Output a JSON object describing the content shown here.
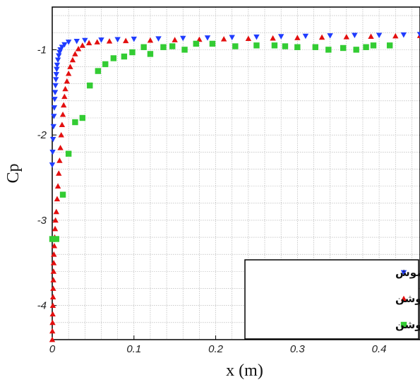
{
  "chart_data": {
    "type": "scatter",
    "xlabel": "x (m)",
    "ylabel": "Cp",
    "xlim": [
      0,
      0.45
    ],
    "ylim": [
      -4.4,
      -0.5
    ],
    "y_reversed": true,
    "grid": true,
    "legend_position": "bottom-right",
    "x_ticks": [
      {
        "value": 0,
        "label": "0"
      },
      {
        "value": 0.1,
        "label": "0.1"
      },
      {
        "value": 0.2,
        "label": "0.2"
      },
      {
        "value": 0.3,
        "label": "0.3"
      },
      {
        "value": 0.4,
        "label": "0.4"
      }
    ],
    "y_ticks": [
      {
        "value": -1,
        "label": "-1"
      },
      {
        "value": -2,
        "label": "-2"
      },
      {
        "value": -3,
        "label": "-3"
      },
      {
        "value": -4,
        "label": "-4"
      }
    ],
    "series": [
      {
        "name": "حل عددی- عملگر خاموش",
        "color": "#1f3cff",
        "marker": "triangle-down",
        "points": [
          [
            0.0,
            -2.35
          ],
          [
            0.0005,
            -2.2
          ],
          [
            0.001,
            -2.05
          ],
          [
            0.0015,
            -1.9
          ],
          [
            0.002,
            -1.78
          ],
          [
            0.0025,
            -1.68
          ],
          [
            0.003,
            -1.58
          ],
          [
            0.0035,
            -1.5
          ],
          [
            0.004,
            -1.42
          ],
          [
            0.0045,
            -1.35
          ],
          [
            0.005,
            -1.29
          ],
          [
            0.0055,
            -1.23
          ],
          [
            0.006,
            -1.18
          ],
          [
            0.007,
            -1.12
          ],
          [
            0.008,
            -1.07
          ],
          [
            0.009,
            -1.03
          ],
          [
            0.01,
            -1.0
          ],
          [
            0.012,
            -0.97
          ],
          [
            0.015,
            -0.94
          ],
          [
            0.02,
            -0.91
          ],
          [
            0.03,
            -0.9
          ],
          [
            0.04,
            -0.89
          ],
          [
            0.06,
            -0.885
          ],
          [
            0.08,
            -0.88
          ],
          [
            0.1,
            -0.875
          ],
          [
            0.13,
            -0.87
          ],
          [
            0.16,
            -0.865
          ],
          [
            0.19,
            -0.86
          ],
          [
            0.22,
            -0.855
          ],
          [
            0.25,
            -0.85
          ],
          [
            0.28,
            -0.845
          ],
          [
            0.31,
            -0.84
          ],
          [
            0.34,
            -0.835
          ],
          [
            0.37,
            -0.83
          ],
          [
            0.4,
            -0.83
          ],
          [
            0.43,
            -0.825
          ],
          [
            0.45,
            -0.82
          ]
        ]
      },
      {
        "name": "حل عددی- عملگر روشن",
        "color": "#e30f0f",
        "marker": "triangle-up",
        "points": [
          [
            0.0,
            -4.4
          ],
          [
            0.0002,
            -4.3
          ],
          [
            0.0004,
            -4.2
          ],
          [
            0.0006,
            -4.1
          ],
          [
            0.0008,
            -4.0
          ],
          [
            0.001,
            -3.9
          ],
          [
            0.0012,
            -3.8
          ],
          [
            0.0014,
            -3.7
          ],
          [
            0.0016,
            -3.6
          ],
          [
            0.0018,
            -3.5
          ],
          [
            0.002,
            -3.4
          ],
          [
            0.0025,
            -3.3
          ],
          [
            0.003,
            -3.2
          ],
          [
            0.0035,
            -3.1
          ],
          [
            0.004,
            -3.0
          ],
          [
            0.005,
            -2.9
          ],
          [
            0.006,
            -2.75
          ],
          [
            0.007,
            -2.6
          ],
          [
            0.008,
            -2.45
          ],
          [
            0.009,
            -2.3
          ],
          [
            0.01,
            -2.15
          ],
          [
            0.011,
            -2.0
          ],
          [
            0.012,
            -1.88
          ],
          [
            0.013,
            -1.76
          ],
          [
            0.014,
            -1.65
          ],
          [
            0.015,
            -1.55
          ],
          [
            0.016,
            -1.46
          ],
          [
            0.018,
            -1.37
          ],
          [
            0.02,
            -1.28
          ],
          [
            0.022,
            -1.2
          ],
          [
            0.025,
            -1.12
          ],
          [
            0.028,
            -1.05
          ],
          [
            0.032,
            -0.99
          ],
          [
            0.037,
            -0.95
          ],
          [
            0.045,
            -0.92
          ],
          [
            0.055,
            -0.91
          ],
          [
            0.07,
            -0.9
          ],
          [
            0.09,
            -0.895
          ],
          [
            0.12,
            -0.89
          ],
          [
            0.15,
            -0.885
          ],
          [
            0.18,
            -0.88
          ],
          [
            0.21,
            -0.875
          ],
          [
            0.24,
            -0.87
          ],
          [
            0.27,
            -0.865
          ],
          [
            0.3,
            -0.86
          ],
          [
            0.33,
            -0.855
          ],
          [
            0.36,
            -0.85
          ],
          [
            0.39,
            -0.845
          ],
          [
            0.42,
            -0.84
          ],
          [
            0.45,
            -0.835
          ]
        ]
      },
      {
        "name": "نتایج تجربی- عملگر روشن",
        "color": "#33cc33",
        "marker": "square",
        "points": [
          [
            0.0,
            -3.22
          ],
          [
            0.005,
            -3.22
          ],
          [
            0.013,
            -2.7
          ],
          [
            0.02,
            -2.22
          ],
          [
            0.028,
            -1.85
          ],
          [
            0.037,
            -1.8
          ],
          [
            0.046,
            -1.42
          ],
          [
            0.056,
            -1.25
          ],
          [
            0.065,
            -1.17
          ],
          [
            0.075,
            -1.1
          ],
          [
            0.088,
            -1.08
          ],
          [
            0.098,
            -1.03
          ],
          [
            0.112,
            -0.97
          ],
          [
            0.12,
            -1.05
          ],
          [
            0.136,
            -0.97
          ],
          [
            0.147,
            -0.96
          ],
          [
            0.162,
            -1.0
          ],
          [
            0.176,
            -0.93
          ],
          [
            0.196,
            -0.93
          ],
          [
            0.224,
            -0.96
          ],
          [
            0.25,
            -0.95
          ],
          [
            0.272,
            -0.95
          ],
          [
            0.285,
            -0.96
          ],
          [
            0.3,
            -0.97
          ],
          [
            0.322,
            -0.97
          ],
          [
            0.338,
            -1.0
          ],
          [
            0.356,
            -0.98
          ],
          [
            0.372,
            -1.0
          ],
          [
            0.384,
            -0.97
          ],
          [
            0.393,
            -0.95
          ],
          [
            0.413,
            -0.95
          ]
        ]
      }
    ]
  }
}
